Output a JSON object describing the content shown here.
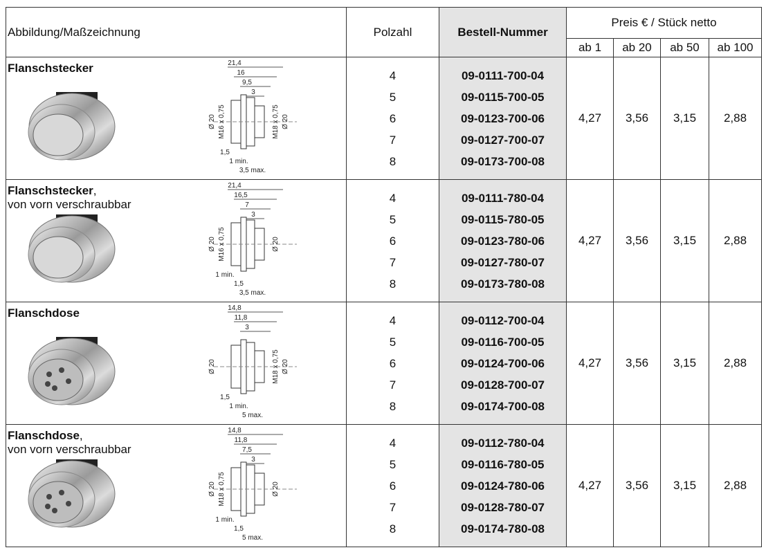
{
  "header": {
    "drawing": "Abbildung/Maßzeichnung",
    "poles": "Polzahl",
    "order": "Bestell-Nummer",
    "price": "Preis € / Stück netto",
    "quantities": [
      "ab 1",
      "ab 20",
      "ab 50",
      "ab 100"
    ]
  },
  "rows": [
    {
      "title": "Flanschstecker",
      "drawing": {
        "top": [
          "21,4",
          "16",
          "9,5",
          "3"
        ],
        "left": [
          "Ø 20",
          "M16 x 0,75"
        ],
        "right": [
          "M18 x 0,75",
          "Ø 20"
        ],
        "bottom": [
          "1,5",
          "1 min.",
          "3,5 max."
        ]
      },
      "poles": [
        4,
        5,
        6,
        7,
        8
      ],
      "order_numbers": [
        "09-0111-700-04",
        "09-0115-700-05",
        "09-0123-700-06",
        "09-0127-700-07",
        "09-0173-700-08"
      ],
      "prices": [
        "4,27",
        "3,56",
        "3,15",
        "2,88"
      ]
    },
    {
      "title": "Flanschstecker",
      "title_suffix": ",",
      "subtitle": "von vorn verschraubbar",
      "drawing": {
        "top": [
          "21,4",
          "16,5",
          "7",
          "3"
        ],
        "left": [
          "Ø 20",
          "M16 x 0,75"
        ],
        "right": [
          "Ø 20"
        ],
        "bottom": [
          "1 min.",
          "1,5",
          "3,5 max."
        ]
      },
      "poles": [
        4,
        5,
        6,
        7,
        8
      ],
      "order_numbers": [
        "09-0111-780-04",
        "09-0115-780-05",
        "09-0123-780-06",
        "09-0127-780-07",
        "09-0173-780-08"
      ],
      "prices": [
        "4,27",
        "3,56",
        "3,15",
        "2,88"
      ]
    },
    {
      "title": "Flanschdose",
      "drawing": {
        "top": [
          "14,8",
          "11,8",
          "3"
        ],
        "left": [
          "Ø 20"
        ],
        "right": [
          "M18 x 0,75",
          "Ø 20"
        ],
        "bottom": [
          "1,5",
          "1 min.",
          "5 max."
        ]
      },
      "poles": [
        4,
        5,
        6,
        7,
        8
      ],
      "order_numbers": [
        "09-0112-700-04",
        "09-0116-700-05",
        "09-0124-700-06",
        "09-0128-700-07",
        "09-0174-700-08"
      ],
      "prices": [
        "4,27",
        "3,56",
        "3,15",
        "2,88"
      ]
    },
    {
      "title": "Flanschdose",
      "title_suffix": ",",
      "subtitle": "von vorn verschraubbar",
      "drawing": {
        "top": [
          "14,8",
          "11,8",
          "7,5",
          "3"
        ],
        "left": [
          "Ø 20",
          "M18 x 0,75"
        ],
        "right": [
          "Ø 20"
        ],
        "bottom": [
          "1 min.",
          "1,5",
          "5 max."
        ]
      },
      "poles": [
        4,
        5,
        6,
        7,
        8
      ],
      "order_numbers": [
        "09-0112-780-04",
        "09-0116-780-05",
        "09-0124-780-06",
        "09-0128-780-07",
        "09-0174-780-08"
      ],
      "prices": [
        "4,27",
        "3,56",
        "3,15",
        "2,88"
      ]
    }
  ]
}
